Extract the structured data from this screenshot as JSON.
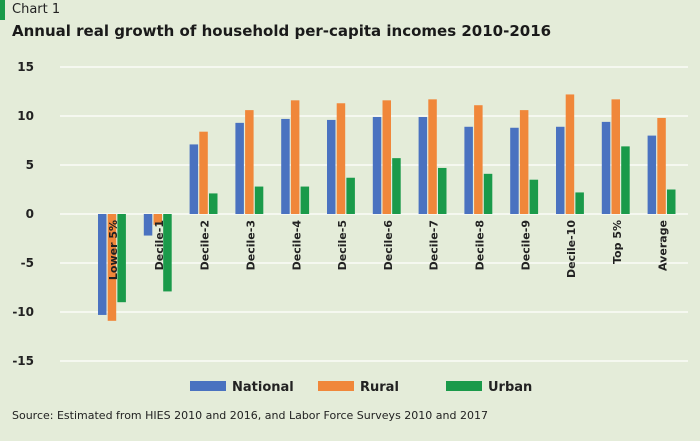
{
  "header": {
    "label": "Chart 1",
    "title": "Annual real growth of household per-capita incomes 2010-2016"
  },
  "source": "Source: Estimated from HIES 2010 and 2016, and Labor Force Surveys 2010 and 2017",
  "colors": {
    "accent": "#1a9a4a",
    "background": "#e4ecd9",
    "grid": "#ffffff"
  },
  "chart_data": {
    "type": "bar",
    "title": "Annual real growth of household per-capita incomes 2010-2016",
    "xlabel": "",
    "ylabel": "",
    "ylim": [
      -15,
      15
    ],
    "yticks": [
      15,
      10,
      5,
      0,
      -5,
      -10,
      -15
    ],
    "grid": true,
    "legend_position": "bottom",
    "categories": [
      "Lower 5%",
      "Decile-1",
      "Decile-2",
      "Decile-3",
      "Decile-4",
      "Decile-5",
      "Decile-6",
      "Decile-7",
      "Decile-8",
      "Decile-9",
      "Decile-10",
      "Top 5%",
      "Average"
    ],
    "series": [
      {
        "name": "National",
        "color": "#4a72c0",
        "values": [
          -10.3,
          -2.2,
          7.1,
          9.3,
          9.7,
          9.6,
          9.9,
          9.9,
          8.9,
          8.8,
          8.9,
          9.4,
          8.0
        ]
      },
      {
        "name": "Rural",
        "color": "#f0873a",
        "values": [
          -10.9,
          -1.1,
          8.4,
          10.6,
          11.6,
          11.3,
          11.6,
          11.7,
          11.1,
          10.6,
          12.2,
          11.7,
          9.8
        ]
      },
      {
        "name": "Urban",
        "color": "#1a9a4a",
        "values": [
          -9.0,
          -7.9,
          2.1,
          2.8,
          2.8,
          3.7,
          5.7,
          4.7,
          4.1,
          3.5,
          2.2,
          6.9,
          2.5
        ]
      }
    ]
  }
}
